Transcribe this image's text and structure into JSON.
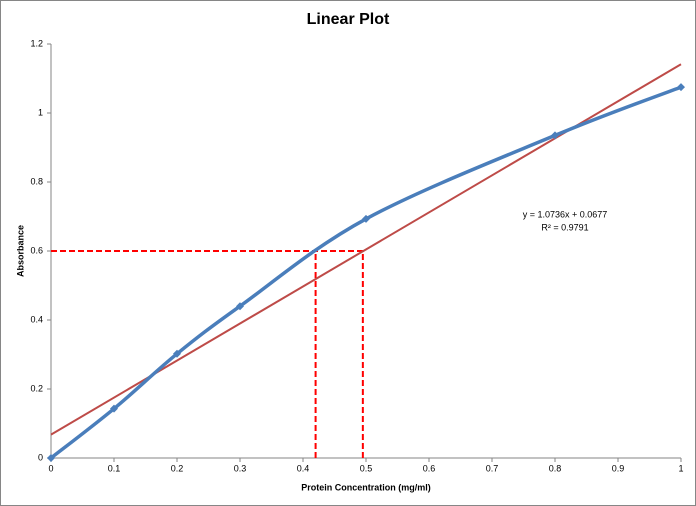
{
  "chart_data": {
    "type": "line",
    "title": "Linear Plot",
    "x_label": "Protein Concentration (mg/ml)",
    "y_label": "Absorbance",
    "series": [
      {
        "color": "#4a7ebb",
        "x": [
          0,
          0.1,
          0.2,
          0.3,
          0.5,
          0.8,
          1
        ],
        "values": [
          0,
          0.143,
          0.302,
          0.44,
          0.693,
          0.935,
          1.075
        ]
      }
    ],
    "trendline": {
      "slope": 1.0736,
      "intercept": 0.0677,
      "color": "#be4b48",
      "label": "y = 1.0736x + 0.0677",
      "r2_label": "R² = 0.9791"
    },
    "reference": {
      "y": 0.6,
      "x": [
        0.42,
        0.495
      ],
      "color": "#ff0000"
    },
    "xlim": [
      0,
      1
    ],
    "xticks": [
      0,
      0.1,
      0.2,
      0.3,
      0.4,
      0.5,
      0.6,
      0.7,
      0.8,
      0.9,
      1
    ],
    "ylim": [
      0,
      1.2
    ],
    "yticks": [
      0,
      0.2,
      0.4,
      0.6,
      0.8,
      1,
      1.2
    ],
    "grid": false
  }
}
